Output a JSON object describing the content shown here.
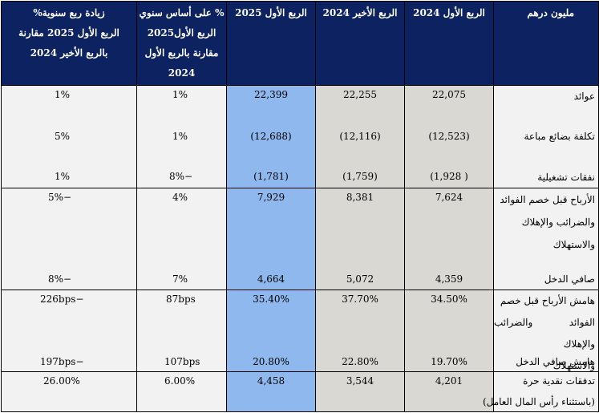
{
  "header": {
    "label": "مليون درهم",
    "q1_2024": "الربع الأول 2024",
    "q4_2024": "الربع الأخير 2024",
    "q1_2025": "الربع الأول 2025",
    "yoy": [
      "% على أساس سنوي",
      "الربع الأول2025",
      "مقارنة بالربع الأول",
      "2024"
    ],
    "qoq": [
      "زيادة ربع سنوية%",
      "الربع الأول 2025 مقارنة",
      "بالربع الأخير 2024"
    ]
  },
  "rows": {
    "revenue": {
      "label": "عوائد",
      "q1_2024": "22,075",
      "q4_2024": "22,255",
      "q1_2025": "22,399",
      "yoy": "1%",
      "qoq": "1%"
    },
    "cogs": {
      "label": "تكلفة بضائع مباعة",
      "q1_2024": "(12,523)",
      "q4_2024": "(12,116)",
      "q1_2025": "(12,688)",
      "yoy": "1%",
      "qoq": "5%"
    },
    "opex": {
      "label": "نفقات تشغيلية",
      "q1_2024": "( 1,928)",
      "q4_2024": "(1,759)",
      "q1_2025": "(1,781)",
      "yoy": "−8%",
      "qoq": "1%"
    },
    "ebitda": {
      "label": [
        "الأرباح قبل خصم الفوائد",
        "والضرائب والإهلاك",
        "والاستهلاك"
      ],
      "q1_2024": "7,624",
      "q4_2024": "8,381",
      "q1_2025": "7,929",
      "yoy": "4%",
      "qoq": "−5%"
    },
    "net_income": {
      "label": "صافي الدخل",
      "q1_2024": "4,359",
      "q4_2024": "5,072",
      "q1_2025": "4,664",
      "yoy": "7%",
      "qoq": "−8%"
    },
    "ebitda_margin": {
      "label": [
        "هامش الأرباح قبل خصم",
        "الفوائد والضرائب والإهلاك",
        "والاستهلاك"
      ],
      "q1_2024": "34.50%",
      "q4_2024": "37.70%",
      "q1_2025": "35.40%",
      "yoy": "87bps",
      "qoq": "−226bps"
    },
    "net_margin": {
      "label": "هامش صافي الدخل",
      "q1_2024": "19.70%",
      "q4_2024": "22.80%",
      "q1_2025": "20.80%",
      "yoy": "107bps",
      "qoq": "−197bps"
    },
    "fcf": {
      "label": [
        "تدفقات نقدية حرة",
        "(باستثناء رأس المال العامل)"
      ],
      "q1_2024": "4,201",
      "q4_2024": "3,544",
      "q1_2025": "4,458",
      "yoy": "6.00%",
      "qoq": "26.00%"
    }
  }
}
